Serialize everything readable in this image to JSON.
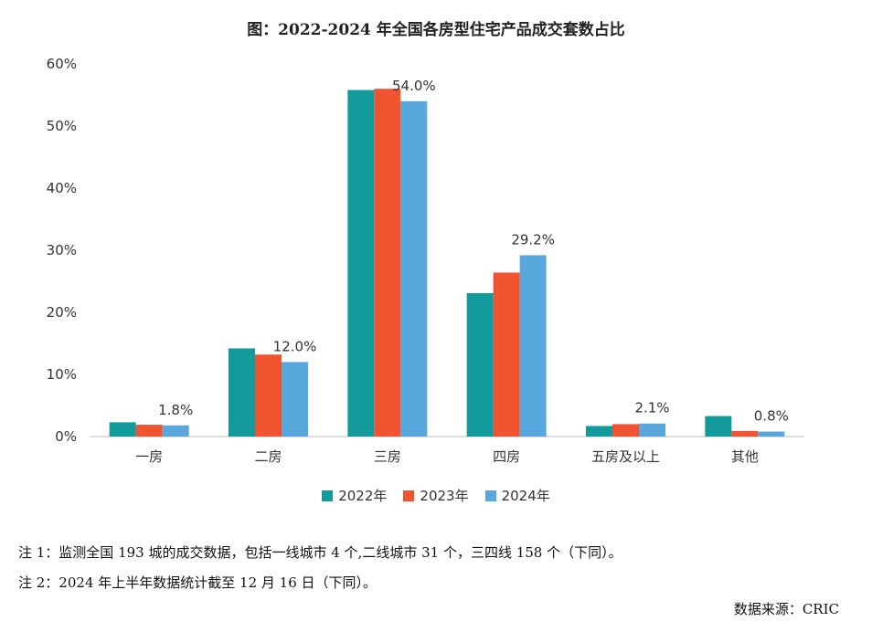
{
  "title": "图：2022-2024 年全国各房型住宅产品成交套数占比",
  "notes": [
    "注 1：监测全国 193 城的成交数据，包括一线城市 4 个,二线城市 31 个，三四线 158 个（下同）。",
    "注 2：2024 年上半年数据统计截至 12 月 16 日（下同）。"
  ],
  "source": "数据来源：CRIC",
  "colors": {
    "2022年": "#139a9b",
    "2023年": "#f05330",
    "2024年": "#59a8dd"
  },
  "chart_data": {
    "type": "bar",
    "categories": [
      "一房",
      "二房",
      "三房",
      "四房",
      "五房及以上",
      "其他"
    ],
    "series": [
      {
        "name": "2022年",
        "values": [
          2.3,
          14.2,
          55.8,
          23.1,
          1.7,
          3.3
        ]
      },
      {
        "name": "2023年",
        "values": [
          1.9,
          13.2,
          56.0,
          26.4,
          2.0,
          0.9
        ]
      },
      {
        "name": "2024年",
        "values": [
          1.8,
          12.0,
          54.0,
          29.2,
          2.1,
          0.8
        ]
      }
    ],
    "data_labels": [
      "1.8%",
      "12.0%",
      "54.0%",
      "29.2%",
      "2.1%",
      "0.8%"
    ],
    "y_ticks": [
      "0%",
      "10%",
      "20%",
      "30%",
      "40%",
      "50%",
      "60%"
    ],
    "ylim": [
      0,
      60
    ],
    "grid": false,
    "legend_position": "bottom"
  }
}
